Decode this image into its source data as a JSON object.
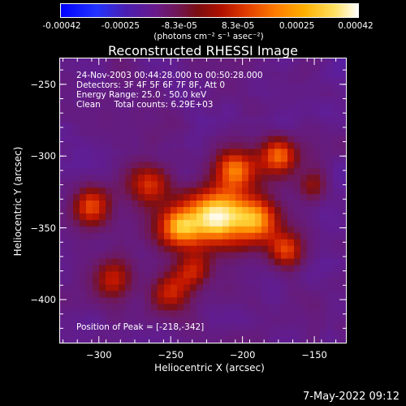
{
  "colorbar": {
    "ticks": [
      "-0.00042",
      "-0.00025",
      "-8.3e-05",
      "8.3e-05",
      "0.00025",
      "0.00042"
    ],
    "unit": "(photons cm⁻² s⁻¹ asec⁻²)"
  },
  "chart_data": {
    "type": "heatmap",
    "title": "Reconstructed RHESSI Image",
    "xlabel": "Heliocentric X (arcsec)",
    "ylabel": "Heliocentric Y (arcsec)",
    "xlim": [
      -327,
      -128
    ],
    "ylim": [
      -430,
      -232
    ],
    "x_ticks": [
      "−300",
      "−250",
      "−200",
      "−150"
    ],
    "y_ticks": [
      "−250",
      "−300",
      "−350",
      "−400"
    ],
    "x_tick_values": [
      -300,
      -250,
      -200,
      -150
    ],
    "y_tick_values": [
      -250,
      -300,
      -350,
      -400
    ],
    "color_range": [
      -0.00042,
      0.00042
    ],
    "colormap": "blue-purple-red-yellow-white",
    "peak": {
      "x": -218,
      "y": -342
    },
    "info_lines": [
      "24-Nov-2003 00:44:28.000 to 00:50:28.000",
      "Detectors: 3F 4F 5F 6F 7F 8F, Att 0",
      "Energy Range: 25.0 - 50.0 keV",
      "Clean     Total counts: 6.29E+03"
    ],
    "peak_label": "Position of Peak = [-218,-342]"
  },
  "timestamp": "7-May-2022 09:12"
}
